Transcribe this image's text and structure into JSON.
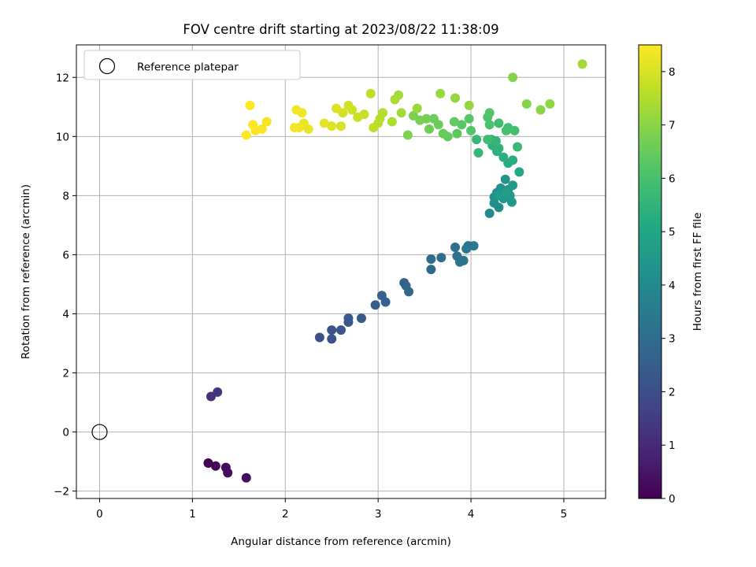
{
  "chart_data": {
    "type": "scatter",
    "title": "FOV centre drift starting at 2023/08/22 11:38:09",
    "xlabel": "Angular distance from reference (arcmin)",
    "ylabel": "Rotation from reference (arcmin)",
    "xlim": [
      -0.25,
      5.45
    ],
    "ylim": [
      -2.25,
      13.1
    ],
    "xticks": [
      0,
      1,
      2,
      3,
      4,
      5
    ],
    "yticks": [
      -2,
      0,
      2,
      4,
      6,
      8,
      10,
      12
    ],
    "grid": true,
    "legend": {
      "position": "top-left",
      "entries": [
        "Reference platepar"
      ]
    },
    "reference_point": {
      "name": "Reference platepar",
      "x": 0,
      "y": 0,
      "marker": "open-circle"
    },
    "colorbar": {
      "label": "Hours from first FF file",
      "min": 0,
      "max": 8.5,
      "ticks": [
        0,
        1,
        2,
        3,
        4,
        5,
        6,
        7,
        8
      ],
      "colormap": "viridis"
    },
    "points": [
      {
        "x": 1.17,
        "y": -1.05,
        "h": 0.1
      },
      {
        "x": 1.25,
        "y": -1.15,
        "h": 0.15
      },
      {
        "x": 1.36,
        "y": -1.2,
        "h": 0.2
      },
      {
        "x": 1.38,
        "y": -1.38,
        "h": 0.25
      },
      {
        "x": 1.58,
        "y": -1.55,
        "h": 0.3
      },
      {
        "x": 1.2,
        "y": 1.2,
        "h": 1.2
      },
      {
        "x": 1.27,
        "y": 1.35,
        "h": 1.3
      },
      {
        "x": 2.37,
        "y": 3.2,
        "h": 2.1
      },
      {
        "x": 2.5,
        "y": 3.15,
        "h": 2.15
      },
      {
        "x": 2.5,
        "y": 3.45,
        "h": 2.2
      },
      {
        "x": 2.6,
        "y": 3.45,
        "h": 2.25
      },
      {
        "x": 2.68,
        "y": 3.72,
        "h": 2.3
      },
      {
        "x": 2.68,
        "y": 3.85,
        "h": 2.35
      },
      {
        "x": 2.82,
        "y": 3.85,
        "h": 2.4
      },
      {
        "x": 2.97,
        "y": 4.3,
        "h": 2.5
      },
      {
        "x": 3.04,
        "y": 4.62,
        "h": 2.55
      },
      {
        "x": 3.08,
        "y": 4.4,
        "h": 2.6
      },
      {
        "x": 3.28,
        "y": 5.05,
        "h": 2.7
      },
      {
        "x": 3.3,
        "y": 4.95,
        "h": 2.75
      },
      {
        "x": 3.33,
        "y": 4.75,
        "h": 2.8
      },
      {
        "x": 3.57,
        "y": 5.5,
        "h": 2.9
      },
      {
        "x": 3.57,
        "y": 5.85,
        "h": 2.95
      },
      {
        "x": 3.68,
        "y": 5.9,
        "h": 3.0
      },
      {
        "x": 3.83,
        "y": 6.25,
        "h": 3.1
      },
      {
        "x": 3.85,
        "y": 5.95,
        "h": 3.15
      },
      {
        "x": 3.88,
        "y": 5.75,
        "h": 3.2
      },
      {
        "x": 3.92,
        "y": 5.8,
        "h": 3.25
      },
      {
        "x": 3.95,
        "y": 6.2,
        "h": 3.3
      },
      {
        "x": 3.97,
        "y": 6.3,
        "h": 3.35
      },
      {
        "x": 4.03,
        "y": 6.3,
        "h": 3.4
      },
      {
        "x": 4.2,
        "y": 7.4,
        "h": 4.0
      },
      {
        "x": 4.25,
        "y": 7.75,
        "h": 4.1
      },
      {
        "x": 4.3,
        "y": 7.6,
        "h": 4.15
      },
      {
        "x": 4.25,
        "y": 7.95,
        "h": 4.2
      },
      {
        "x": 4.28,
        "y": 8.1,
        "h": 4.25
      },
      {
        "x": 4.32,
        "y": 8.25,
        "h": 4.3
      },
      {
        "x": 4.35,
        "y": 7.9,
        "h": 4.35
      },
      {
        "x": 4.37,
        "y": 8.55,
        "h": 4.4
      },
      {
        "x": 4.4,
        "y": 8.2,
        "h": 4.45
      },
      {
        "x": 4.42,
        "y": 8.0,
        "h": 4.5
      },
      {
        "x": 4.44,
        "y": 7.78,
        "h": 4.55
      },
      {
        "x": 4.45,
        "y": 8.35,
        "h": 4.6
      },
      {
        "x": 4.3,
        "y": 8.0,
        "h": 4.65
      },
      {
        "x": 4.38,
        "y": 8.1,
        "h": 4.7
      },
      {
        "x": 4.52,
        "y": 8.8,
        "h": 5.1
      },
      {
        "x": 4.4,
        "y": 9.1,
        "h": 5.2
      },
      {
        "x": 4.45,
        "y": 9.2,
        "h": 5.25
      },
      {
        "x": 4.35,
        "y": 9.3,
        "h": 5.3
      },
      {
        "x": 4.28,
        "y": 9.5,
        "h": 5.35
      },
      {
        "x": 4.23,
        "y": 9.7,
        "h": 5.4
      },
      {
        "x": 4.3,
        "y": 9.6,
        "h": 5.45
      },
      {
        "x": 4.22,
        "y": 9.9,
        "h": 5.5
      },
      {
        "x": 4.27,
        "y": 9.85,
        "h": 5.55
      },
      {
        "x": 4.08,
        "y": 9.45,
        "h": 5.6
      },
      {
        "x": 4.06,
        "y": 9.9,
        "h": 5.65
      },
      {
        "x": 4.5,
        "y": 9.65,
        "h": 5.7
      },
      {
        "x": 4.18,
        "y": 9.9,
        "h": 5.8
      },
      {
        "x": 4.3,
        "y": 10.45,
        "h": 5.85
      },
      {
        "x": 4.4,
        "y": 10.3,
        "h": 5.9
      },
      {
        "x": 4.47,
        "y": 10.2,
        "h": 5.95
      },
      {
        "x": 4.38,
        "y": 10.2,
        "h": 6.0
      },
      {
        "x": 4.2,
        "y": 10.4,
        "h": 6.05
      },
      {
        "x": 4.18,
        "y": 10.65,
        "h": 6.1
      },
      {
        "x": 4.2,
        "y": 10.8,
        "h": 6.15
      },
      {
        "x": 4.0,
        "y": 10.2,
        "h": 6.2
      },
      {
        "x": 3.98,
        "y": 10.6,
        "h": 6.25
      },
      {
        "x": 3.9,
        "y": 10.4,
        "h": 6.3
      },
      {
        "x": 3.85,
        "y": 10.1,
        "h": 6.35
      },
      {
        "x": 3.82,
        "y": 10.5,
        "h": 6.4
      },
      {
        "x": 3.75,
        "y": 10.0,
        "h": 6.45
      },
      {
        "x": 3.7,
        "y": 10.1,
        "h": 6.5
      },
      {
        "x": 3.65,
        "y": 10.4,
        "h": 6.55
      },
      {
        "x": 3.6,
        "y": 10.6,
        "h": 6.6
      },
      {
        "x": 3.55,
        "y": 10.25,
        "h": 6.65
      },
      {
        "x": 3.52,
        "y": 10.6,
        "h": 6.7
      },
      {
        "x": 3.45,
        "y": 10.55,
        "h": 6.75
      },
      {
        "x": 3.38,
        "y": 10.7,
        "h": 6.8
      },
      {
        "x": 3.32,
        "y": 10.05,
        "h": 6.85
      },
      {
        "x": 4.45,
        "y": 12.0,
        "h": 6.9
      },
      {
        "x": 4.6,
        "y": 11.1,
        "h": 6.95
      },
      {
        "x": 4.75,
        "y": 10.9,
        "h": 7.0
      },
      {
        "x": 4.85,
        "y": 11.1,
        "h": 7.05
      },
      {
        "x": 3.98,
        "y": 11.05,
        "h": 7.1
      },
      {
        "x": 3.83,
        "y": 11.3,
        "h": 7.15
      },
      {
        "x": 3.67,
        "y": 11.45,
        "h": 7.2
      },
      {
        "x": 3.42,
        "y": 10.95,
        "h": 7.25
      },
      {
        "x": 3.25,
        "y": 10.8,
        "h": 7.3
      },
      {
        "x": 3.22,
        "y": 11.4,
        "h": 7.35
      },
      {
        "x": 3.18,
        "y": 11.25,
        "h": 7.4
      },
      {
        "x": 3.15,
        "y": 10.5,
        "h": 7.45
      },
      {
        "x": 3.05,
        "y": 10.8,
        "h": 7.5
      },
      {
        "x": 3.02,
        "y": 10.6,
        "h": 7.55
      },
      {
        "x": 3.0,
        "y": 10.45,
        "h": 7.6
      },
      {
        "x": 2.95,
        "y": 10.3,
        "h": 7.65
      },
      {
        "x": 2.92,
        "y": 11.45,
        "h": 7.7
      },
      {
        "x": 2.85,
        "y": 10.75,
        "h": 7.75
      },
      {
        "x": 2.78,
        "y": 10.65,
        "h": 7.8
      },
      {
        "x": 2.72,
        "y": 10.9,
        "h": 7.85
      },
      {
        "x": 2.68,
        "y": 11.05,
        "h": 7.9
      },
      {
        "x": 2.62,
        "y": 10.8,
        "h": 7.95
      },
      {
        "x": 2.6,
        "y": 10.35,
        "h": 8.0
      },
      {
        "x": 2.55,
        "y": 10.95,
        "h": 8.05
      },
      {
        "x": 2.5,
        "y": 10.35,
        "h": 8.1
      },
      {
        "x": 2.42,
        "y": 10.45,
        "h": 8.15
      },
      {
        "x": 2.25,
        "y": 10.25,
        "h": 8.2
      },
      {
        "x": 2.2,
        "y": 10.45,
        "h": 8.25
      },
      {
        "x": 2.18,
        "y": 10.8,
        "h": 8.3
      },
      {
        "x": 2.15,
        "y": 10.3,
        "h": 8.32
      },
      {
        "x": 2.12,
        "y": 10.9,
        "h": 8.35
      },
      {
        "x": 2.1,
        "y": 10.3,
        "h": 8.37
      },
      {
        "x": 1.8,
        "y": 10.5,
        "h": 8.4
      },
      {
        "x": 1.75,
        "y": 10.25,
        "h": 8.42
      },
      {
        "x": 1.68,
        "y": 10.2,
        "h": 8.44
      },
      {
        "x": 1.65,
        "y": 10.4,
        "h": 8.46
      },
      {
        "x": 1.62,
        "y": 11.05,
        "h": 8.48
      },
      {
        "x": 1.58,
        "y": 10.05,
        "h": 8.5
      },
      {
        "x": 5.2,
        "y": 12.45,
        "h": 7.3
      }
    ]
  }
}
